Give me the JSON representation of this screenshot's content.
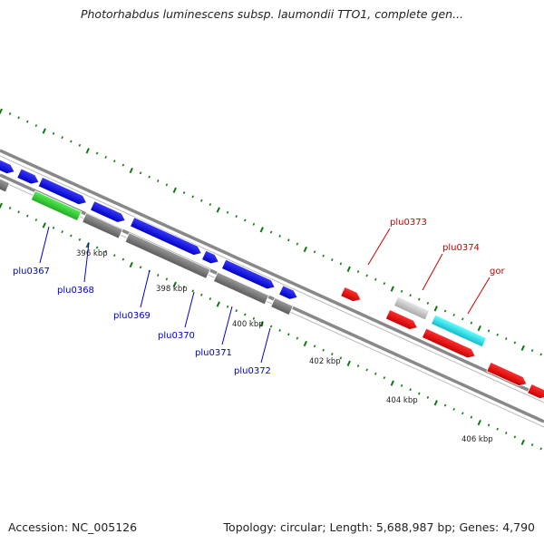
{
  "map": {
    "title": "Photorhabdus luminescens subsp. laumondii TTO1, complete gen...",
    "accession_label": "Accession:",
    "accession": "NC_005126",
    "topology_label": "Topology:",
    "topology": "circular",
    "length_label": "Length:",
    "length": "5,688,987 bp",
    "genes_label": "Genes:",
    "genes": "4,790"
  },
  "ruler": {
    "ticks": [
      "396 kbp",
      "398 kbp",
      "400 kbp",
      "402 kbp",
      "404 kbp",
      "406 kbp"
    ]
  },
  "genes": [
    {
      "label": "plu0367",
      "color": "#0000cc"
    },
    {
      "label": "plu0368",
      "color": "#0000cc"
    },
    {
      "label": "plu0369",
      "color": "#0000cc"
    },
    {
      "label": "plu0370",
      "color": "#0000cc"
    },
    {
      "label": "plu0371",
      "color": "#0000cc"
    },
    {
      "label": "plu0372",
      "color": "#0000cc"
    },
    {
      "label": "plu0373",
      "color": "#cc0000"
    },
    {
      "label": "plu0374",
      "color": "#cc0000"
    },
    {
      "label": "gor",
      "color": "#cc0000"
    }
  ],
  "colors": {
    "forward_cds": "#1010e8",
    "reverse_cds": "#ee1111",
    "gene_grey": "#777777",
    "rrna_green": "#33cc33",
    "trna_cyan": "#22dddd",
    "backbone": "#888888",
    "tick_green": "#117711"
  }
}
